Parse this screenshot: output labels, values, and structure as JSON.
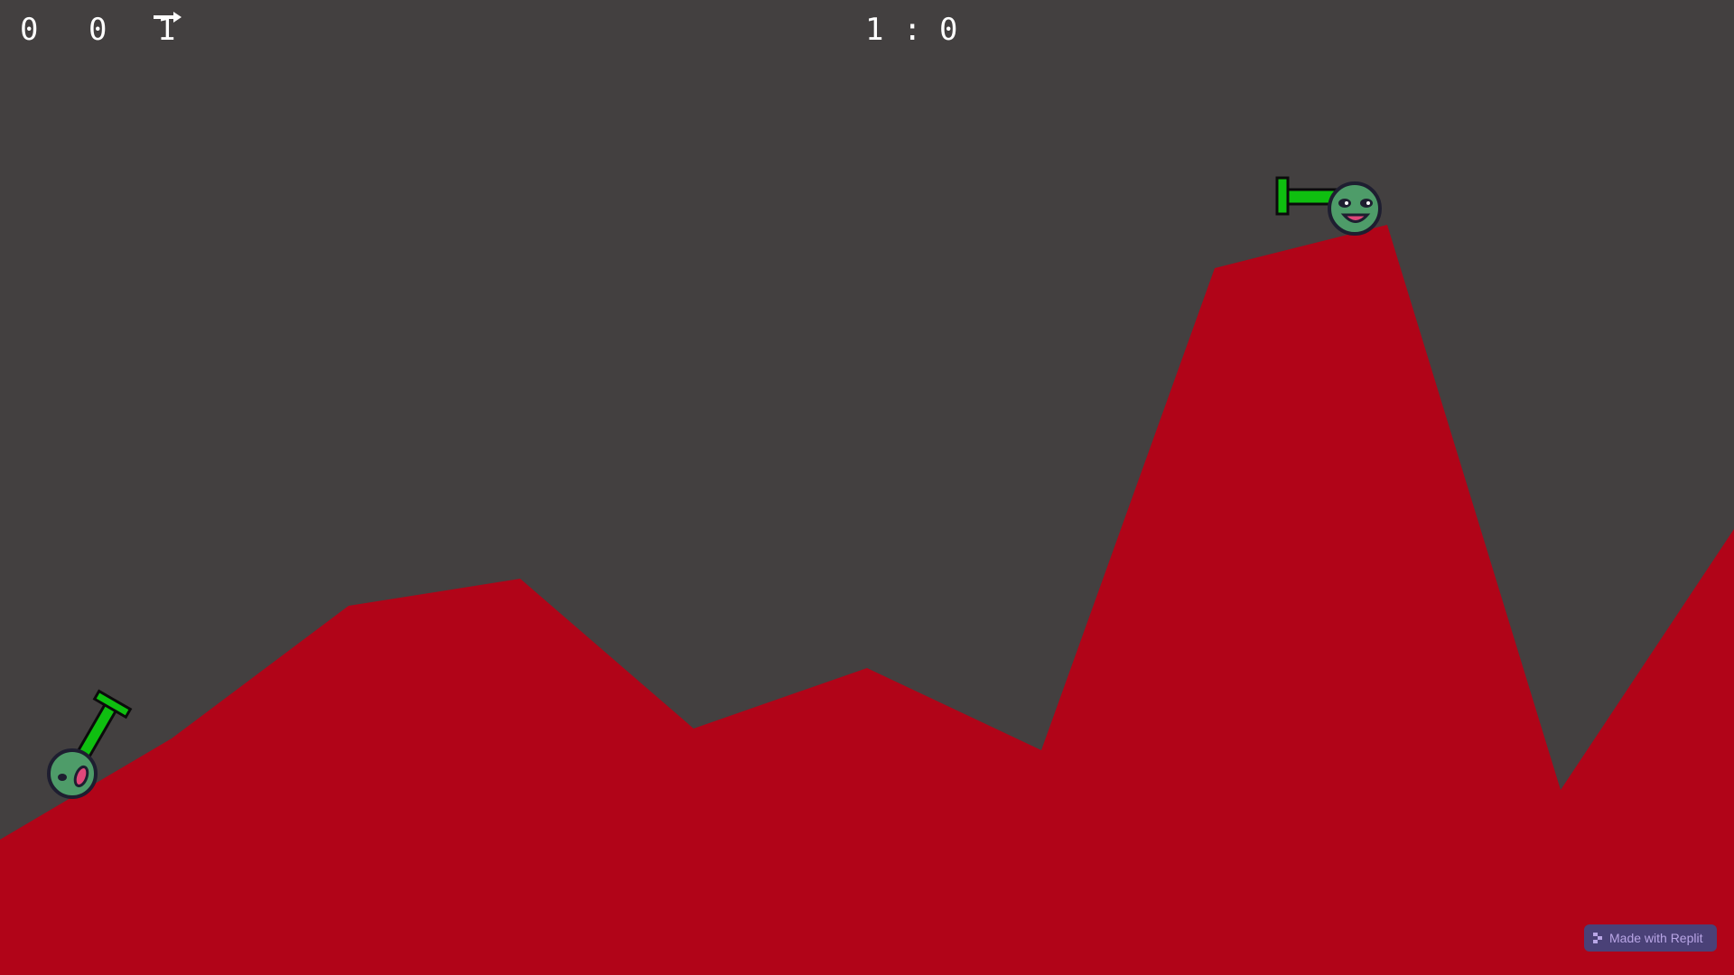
{
  "hud": {
    "selectors": [
      "0",
      "0",
      "1"
    ],
    "selected_index": 2,
    "selector_arrow_icon": "arrow-right-icon"
  },
  "score": {
    "left": "1",
    "separator": ":",
    "right": "0"
  },
  "terrain": {
    "color": "#b10418"
  },
  "players": [
    {
      "name": "player-left",
      "body_color": "#4e9c69",
      "cannon_color": "#0fbf10"
    },
    {
      "name": "player-right",
      "body_color": "#4e9c69",
      "cannon_color": "#0fbf10"
    }
  ],
  "badge": {
    "label": "Made with Replit",
    "icon": "replit-icon"
  }
}
